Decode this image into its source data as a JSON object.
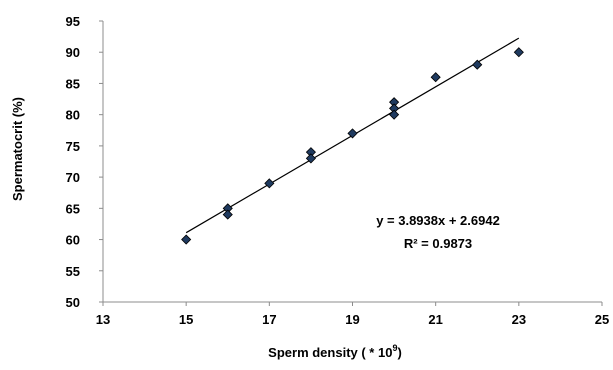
{
  "chart_data": {
    "type": "scatter",
    "title": "",
    "xlabel": "Sperm density ( * 10",
    "xlabel_superscript": "9",
    "xlabel_suffix": ")",
    "ylabel": "Spermatocrit (%)",
    "xlim": [
      13,
      25
    ],
    "ylim": [
      50,
      95
    ],
    "xticks": [
      "13",
      "15",
      "17",
      "19",
      "21",
      "23",
      "25"
    ],
    "yticks": [
      "50",
      "55",
      "60",
      "65",
      "70",
      "75",
      "80",
      "85",
      "90",
      "95"
    ],
    "grid": false,
    "legend": "none",
    "marker_color": "#1f3a5f",
    "marker_edge_color": "#000000",
    "line_color": "#000000",
    "series": [
      {
        "x": [
          15,
          16,
          16,
          17,
          18,
          18,
          19,
          20,
          20,
          20,
          21,
          22,
          23
        ],
        "y": [
          60,
          65,
          64,
          69,
          74,
          73,
          77,
          82,
          81,
          80,
          86,
          88,
          90
        ]
      }
    ],
    "trendline": {
      "slope": 3.8938,
      "intercept": 2.6942,
      "x_range": [
        15,
        23
      ]
    },
    "annotations": [
      "y = 3.8938x + 2.6942",
      "R² = 0.9873"
    ]
  }
}
